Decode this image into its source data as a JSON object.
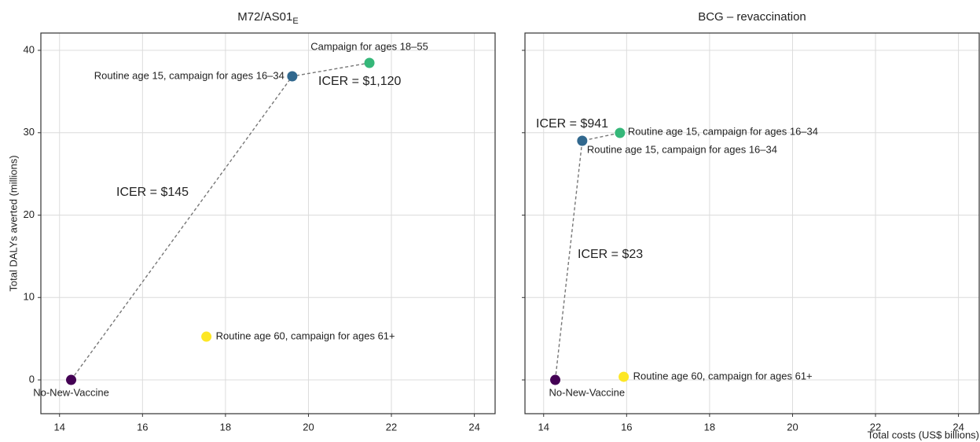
{
  "chart_data": [
    {
      "type": "scatter",
      "title": "M72/AS01",
      "title_subscript": "E",
      "ylabel": "Total DALYs averted (millions)",
      "x": [
        14.28,
        19.61,
        21.47,
        17.54
      ],
      "y": [
        0,
        36.85,
        38.47,
        5.25
      ],
      "point_labels": [
        "No-New-Vaccine",
        "Routine age 15, campaign for ages 16–34",
        "Campaign for ages 18–55",
        "Routine age 60, campaign for ages 61+"
      ],
      "colors": [
        "#440154",
        "#31688e",
        "#35b779",
        "#fde725"
      ],
      "annotations": [
        "ICER = $1,120",
        "ICER = $145"
      ],
      "xlim": [
        13.55,
        24.5
      ],
      "ylim": [
        -4.1,
        42.1
      ],
      "xticks": [
        14,
        16,
        18,
        20,
        22,
        24
      ],
      "yticks": [
        0,
        10,
        20,
        30,
        40
      ],
      "show_ytick_labels": true,
      "grid": true
    },
    {
      "type": "scatter",
      "title": "BCG – revaccination",
      "xlabel": "Total costs (US$ billions)",
      "x": [
        14.28,
        14.93,
        15.84,
        15.93
      ],
      "y": [
        0,
        29.02,
        29.98,
        0.38
      ],
      "point_labels": [
        "No-New-Vaccine",
        "Routine age 15, campaign for ages 16–34",
        "Routine age 15, campaign for ages 16–34",
        "Routine age 60, campaign for ages 61+"
      ],
      "colors": [
        "#440154",
        "#31688e",
        "#35b779",
        "#fde725"
      ],
      "annotations": [
        "ICER = $941",
        "ICER = $23"
      ],
      "xlim": [
        13.55,
        24.5
      ],
      "ylim": [
        -4.1,
        42.1
      ],
      "xticks": [
        14,
        16,
        18,
        20,
        22,
        24
      ],
      "yticks": [
        0,
        10,
        20,
        30,
        40
      ],
      "show_ytick_labels": false,
      "grid": true
    }
  ]
}
